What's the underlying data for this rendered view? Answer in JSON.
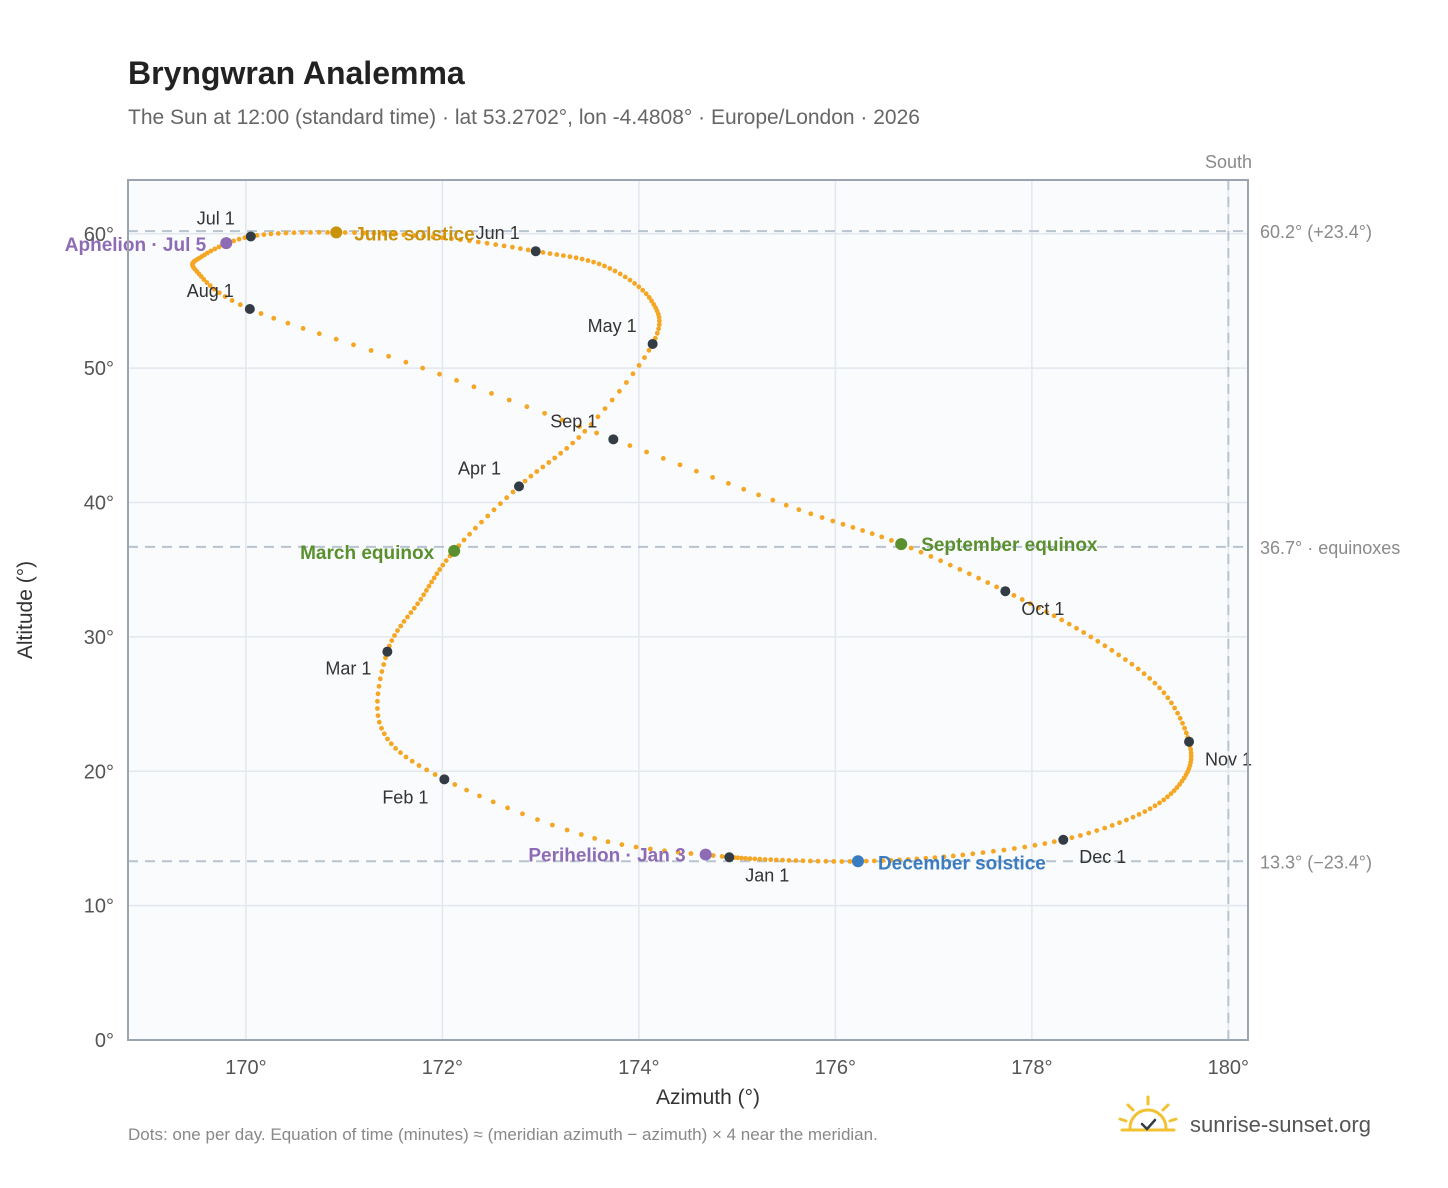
{
  "header": {
    "title": "Bryngwran Analemma",
    "subtitle": "The Sun at 12:00 (standard time) · lat 53.2702°, lon -4.4808° · Europe/London · 2026"
  },
  "footer": {
    "note": "Dots: one per day. Equation of time (minutes) ≈ (meridian azimuth − azimuth) × 4 near the meridian.",
    "brand": "sunrise-sunset.org"
  },
  "colors": {
    "curve": "#f5a623",
    "month_dot": "#333b45",
    "june_solstice": "#c9920a",
    "equinox": "#5a8f2e",
    "december_solstice": "#3b7bbf",
    "apsis": "#8e6bb5",
    "grid": "#e3e8ee",
    "plot_bg": "#f9fbfd",
    "ref_line": "#b8c4cf",
    "brand_sun": "#f1c232"
  },
  "chart_data": {
    "type": "scatter",
    "xlabel": "Azimuth (°)",
    "ylabel": "Altitude (°)",
    "xlim": [
      168.8,
      180.2
    ],
    "ylim": [
      0,
      64
    ],
    "x_ticks": [
      170,
      172,
      174,
      176,
      178,
      180
    ],
    "x_tick_labels": [
      "170°",
      "172°",
      "174°",
      "176°",
      "178°",
      "180°"
    ],
    "y_ticks": [
      0,
      10,
      20,
      30,
      40,
      50,
      60
    ],
    "y_tick_labels": [
      "0°",
      "10°",
      "20°",
      "30°",
      "40°",
      "50°",
      "60°"
    ],
    "grid": true,
    "reference_lines": {
      "vertical": {
        "x": 180,
        "label": "South"
      },
      "horizontal": [
        {
          "y": 60.2,
          "label": "60.2° (+23.4°)"
        },
        {
          "y": 36.7,
          "label": "36.7° · equinoxes"
        },
        {
          "y": 13.3,
          "label": "13.3° (−23.4°)"
        }
      ]
    },
    "month_markers": [
      {
        "label": "Jan 1",
        "az": 174.92,
        "alt": 13.6
      },
      {
        "label": "Feb 1",
        "az": 172.02,
        "alt": 19.4
      },
      {
        "label": "Mar 1",
        "az": 171.44,
        "alt": 28.9
      },
      {
        "label": "Apr 1",
        "az": 172.78,
        "alt": 41.2
      },
      {
        "label": "May 1",
        "az": 174.14,
        "alt": 51.8
      },
      {
        "label": "Jun 1",
        "az": 172.95,
        "alt": 58.7
      },
      {
        "label": "Jul 1",
        "az": 170.05,
        "alt": 59.8
      },
      {
        "label": "Aug 1",
        "az": 170.04,
        "alt": 54.4
      },
      {
        "label": "Sep 1",
        "az": 173.74,
        "alt": 44.7
      },
      {
        "label": "Oct 1",
        "az": 177.73,
        "alt": 33.4
      },
      {
        "label": "Nov 1",
        "az": 179.6,
        "alt": 22.2
      },
      {
        "label": "Dec 1",
        "az": 178.32,
        "alt": 14.9
      }
    ],
    "events": [
      {
        "label": "June solstice",
        "az": 170.92,
        "alt": 60.1,
        "color_key": "june_solstice"
      },
      {
        "label": "March equinox",
        "az": 172.12,
        "alt": 36.4,
        "color_key": "equinox"
      },
      {
        "label": "September equinox",
        "az": 176.67,
        "alt": 36.9,
        "color_key": "equinox"
      },
      {
        "label": "December solstice",
        "az": 176.23,
        "alt": 13.3,
        "color_key": "december_solstice"
      },
      {
        "label": "Aphelion · Jul 5",
        "az": 169.8,
        "alt": 59.3,
        "color_key": "apsis"
      },
      {
        "label": "Perihelion · Jan 3",
        "az": 174.68,
        "alt": 13.8,
        "color_key": "apsis"
      }
    ],
    "curve_keypoints": [
      {
        "az": 174.92,
        "alt": 13.6
      },
      {
        "az": 173.55,
        "alt": 15.0
      },
      {
        "az": 172.02,
        "alt": 19.4
      },
      {
        "az": 171.38,
        "alt": 23.2
      },
      {
        "az": 171.44,
        "alt": 28.9
      },
      {
        "az": 171.78,
        "alt": 32.8
      },
      {
        "az": 172.12,
        "alt": 36.4
      },
      {
        "az": 172.78,
        "alt": 41.2
      },
      {
        "az": 173.45,
        "alt": 45.3
      },
      {
        "az": 174.14,
        "alt": 51.8
      },
      {
        "az": 174.13,
        "alt": 55.0
      },
      {
        "az": 173.65,
        "alt": 57.6
      },
      {
        "az": 172.95,
        "alt": 58.7
      },
      {
        "az": 172.0,
        "alt": 59.7
      },
      {
        "az": 170.92,
        "alt": 60.1
      },
      {
        "az": 170.05,
        "alt": 59.8
      },
      {
        "az": 169.55,
        "alt": 58.3
      },
      {
        "az": 169.5,
        "alt": 57.2
      },
      {
        "az": 170.04,
        "alt": 54.4
      },
      {
        "az": 171.8,
        "alt": 50.0
      },
      {
        "az": 173.74,
        "alt": 44.7
      },
      {
        "az": 175.5,
        "alt": 39.8
      },
      {
        "az": 176.67,
        "alt": 36.9
      },
      {
        "az": 177.73,
        "alt": 33.4
      },
      {
        "az": 178.6,
        "alt": 30.0
      },
      {
        "az": 179.3,
        "alt": 26.2
      },
      {
        "az": 179.6,
        "alt": 22.2
      },
      {
        "az": 179.55,
        "alt": 19.5
      },
      {
        "az": 179.15,
        "alt": 17.0
      },
      {
        "az": 178.32,
        "alt": 14.9
      },
      {
        "az": 177.2,
        "alt": 13.7
      },
      {
        "az": 176.23,
        "alt": 13.3
      },
      {
        "az": 175.4,
        "alt": 13.4
      },
      {
        "az": 174.92,
        "alt": 13.6
      }
    ]
  }
}
